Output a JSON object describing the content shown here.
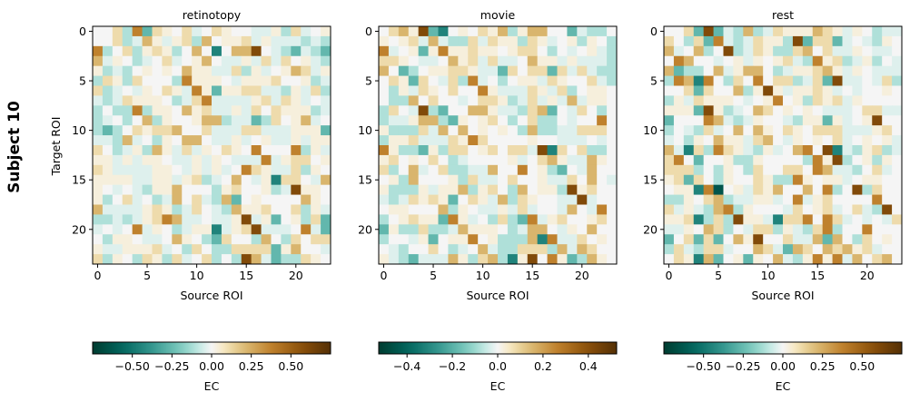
{
  "chart_data": {
    "type": "heatmap",
    "row_label": "Subject 10",
    "ylabel": "Target ROI",
    "colormap": "BrBG",
    "level_code_note": "each row is a string of 24 codes; value = level_fraction[code] * vmax",
    "level_fraction": {
      "A": -0.85,
      "B": -0.6,
      "C": -0.35,
      "D": -0.15,
      "E": -0.05,
      "F": 0,
      "G": 0.05,
      "H": 0.15,
      "I": 0.3,
      "J": 0.5,
      "K": 0.8
    },
    "panels": [
      {
        "title": "retinotopy",
        "xlabel": "Source ROI",
        "colorbar_label": "EC",
        "vmin": -0.75,
        "vmax": 0.75,
        "xticks": [
          0,
          5,
          10,
          15,
          20
        ],
        "yticks": [
          0,
          5,
          10,
          15,
          20
        ],
        "cbar_ticks": [
          -0.5,
          -0.25,
          0,
          0.25,
          0.5
        ],
        "cbar_tick_labels": [
          "−0.50",
          "−0.25",
          "0.00",
          "0.25",
          "0.50"
        ],
        "rows": [
          "FFHDJCHGFHEFHGFFEEGDHEFG",
          "FFHDEIGEGHDIFGGHEGEEEDED",
          "JDFHDGHGDFIFBFIIKFEDCEDC",
          "IEGFDEFHEFGIFEEGEHEHFGED",
          "GDEDFGFGFIGGEEHDGEFGIHEG",
          "DHGDHFFFDJGGGFEGGGHFFGDE",
          "HDEFEGFHGEJGCGGHHEEDGEHD",
          "EDEHGGGFDEHJEEEEGHEHGEFE",
          "DFDDJDGGFIGHEEGEHFHGGGDE",
          "DEFDFIDGFFGIIDEECDHFGIEF",
          "DCDFHGHHIFFHEEEHHEEEGGGC",
          "EEDIEFDGFIIFEEGEFGEEGEGG",
          "HFDEGDIGEHEGFHGFJFFFJDGE",
          "GGEGEGGFEEGEGFEEEJEGHHFG",
          "HGEEEEGGFEGEGEFJHGEEHDGF",
          "GGGGEEGGEGHDEFIFEGBHHFEI",
          "GFEFEDGGIFFFDGHFFGDEKGGF",
          "GDFHEFDEIFHEDICFGFFFFIGF",
          "IEEEEGHGDEHFEDIGGHFFHDGE",
          "DDEDEGHJIEEFEEGKEGCFGDHC",
          "EFEFJEGFDEGGBEGHKEEEFJEC",
          "FDGGFEEFIGFDCHFFDIFDHFHH",
          "GEEGGGHEFDHFDDHHHHCGIFFE",
          "HDGFDHGDHEFHDFDKIECDDHGF"
        ]
      },
      {
        "title": "movie",
        "xlabel": "Source ROI",
        "colorbar_label": "EC",
        "vmin": -0.525,
        "vmax": 0.525,
        "xticks": [
          0,
          5,
          10,
          15,
          20
        ],
        "yticks": [
          0,
          5,
          10,
          15,
          20
        ],
        "cbar_ticks": [
          -0.4,
          -0.2,
          0,
          0.2,
          0.4
        ],
        "cbar_tick_labels": [
          "−0.4",
          "−0.2",
          "0.0",
          "0.2",
          "0.4"
        ],
        "rows": [
          "FHIGKCBFGFHGIDGIIFFCEDDF",
          "GFGHEIEDDHEHGGDHGEFGDGFD",
          "JEFGCGJGGHGGFGHHFDFEFGED",
          "HHGFEEFIGHEHEEFIGGEGEEED",
          "IFCDFGGHHGEECHFHHCHEHEDD",
          "FHGCHFEHDJEFDFGGEHGFFHED",
          "FDGEHGFHFFJGEEEHGEHDFGGF",
          "FDDIFHFFEFHHGDEHEGEIEGGF",
          "DHFEKDCFFIIGEEDHICFEHFDF",
          "DEEGIIDCGFGHFDFHDDFEFFJF",
          "GDDDHEIFIFGFGFDIDDEEHHHF",
          "DGGHEEEHGJHFFFFGFFEEEFEF",
          "JGDDCGDHHFGHFHHEKBHFHDDF",
          "GHFGFHFDEFFFFGEFHIGEEIGF",
          "HDFIEFHDDEEIFFJFGDCFEIFF",
          "FGDIFFFGDHEEFHFFGEEHFIFE",
          "GDDDGEGGIDGHFDIFGGDKGHFF",
          "EDEHGHGCFHGEIDHGFFEEKEFF",
          "FGGFFFIDGFEEGEHEFFEIFEJF",
          "DFGHGGCJGEFDHDCJEGHFFGHF",
          "CGDDHDDEIGGGFDEIIFEGFIFF",
          "DFFEGCFGGJFGDDDIBJEEHFGF",
          "FEDFFHFDEFIEDDHHHDIEIHFF",
          "GEDCEEEIGDHIDBGKFJGCDIGF"
        ]
      },
      {
        "title": "rest",
        "xlabel": "Source ROI",
        "colorbar_label": "EC",
        "vmin": -0.75,
        "vmax": 0.75,
        "xticks": [
          0,
          5,
          10,
          15,
          20
        ],
        "yticks": [
          0,
          5,
          10,
          15,
          20
        ],
        "cbar_ticks": [
          -0.5,
          -0.25,
          0,
          0.25,
          0.5
        ],
        "cbar_tick_labels": [
          "−0.50",
          "−0.25",
          "0.00",
          "0.25",
          "0.50"
        ],
        "rows": [
          "FFHCKCEDIDEHGGGIHGEGFDEE",
          "HFDHCJEDEHGGDKCHHCEFEDGF",
          "IEFIDFKDEHGDDHIFHEEGFEEF",
          "FJIFFEFGEGFGHEDJGHDEGDFE",
          "ICDDFIEGIIFDEGGHIGEGFEEE",
          "DJIBJFDHFJFHHDEHCKEEFEHD",
          "FFHCHFFIDGKGEGGHGEFEFFGF",
          "DGEHGGGFEFGJFGDHGHEGFFFF",
          "GGGCKGDEFIHFGFGFEEEFHHEE",
          "CFFFJIEDEGFFEDGGCGEFGKFF",
          "DFEDHEFIFIGFHGFHHHEEEGHF",
          "EFDGFIGGEHIFEGFGFHEFGFGE",
          "IEBHDJHGEDGEFIJFKBEDGHDE",
          "HJFCFFGDDGFFFFDJGKDFGDGF",
          "HHHDFDGFDHFFHHFJIEEDFHEF",
          "GHCHFDGFFHGDDJGFGGEFGGFF",
          "FGGBJAFGEHGIFFIFJDFKDHFF",
          "DDGFHIDEEGGEFJEGHFFFFJFF",
          "HEGEDIJDGFFFEHFGHEFHEDKF",
          "GGHBDHDKGGEBHHJFJHEFEFEH",
          "EEGFIHDFEHHDGEDHJDFFJFFF",
          "CFHCHCFIGKFFHEEICIFDHFGF",
          "DHEDHHEFFIHECIHFIHIGHEFF",
          "FHGBICFGCGFIEDGJGJEIFHIF"
        ]
      }
    ]
  }
}
